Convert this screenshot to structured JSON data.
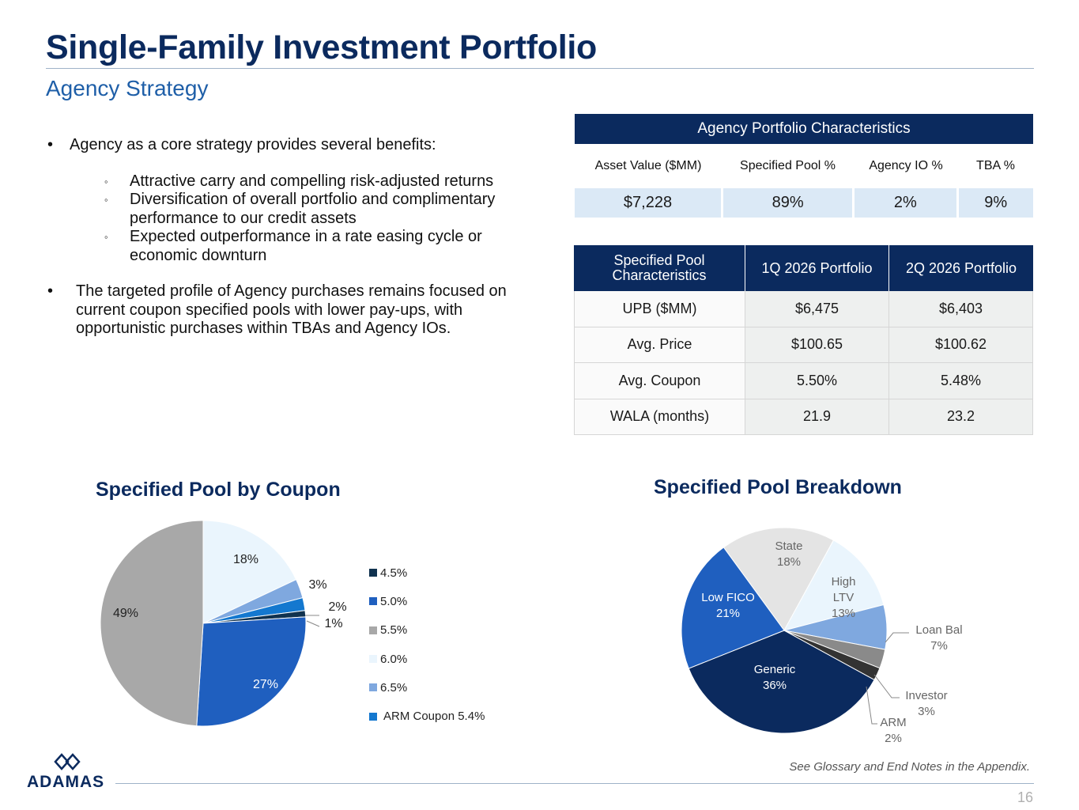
{
  "header": {
    "title": "Single-Family Investment Portfolio",
    "subtitle": "Agency Strategy"
  },
  "bullets": {
    "main1": "Agency as a core strategy provides several benefits:",
    "subs": [
      "Attractive carry and compelling risk-adjusted returns",
      "Diversification of overall portfolio and complimentary performance to our credit assets",
      "Expected outperformance in a rate easing cycle or economic downturn"
    ],
    "main2": "The targeted profile of Agency purchases remains focused on current coupon specified pools with lower pay-ups, with opportunistic purchases within TBAs and Agency IOs.",
    "dot_symbol": "•",
    "ring_symbol": "◦"
  },
  "table1": {
    "title": "Agency Portfolio Characteristics",
    "columns": [
      "Asset Value ($MM)",
      "Specified Pool %",
      "Agency IO %",
      "TBA %"
    ],
    "values": [
      "$7,228",
      "89%",
      "2%",
      "9%"
    ]
  },
  "table2": {
    "headers": [
      "Specified Pool Characteristics",
      "1Q 2026 Portfolio",
      "2Q 2026 Portfolio"
    ],
    "rows": [
      [
        "UPB ($MM)",
        "$6,475",
        "$6,403"
      ],
      [
        "Avg. Price",
        "$100.65",
        "$100.62"
      ],
      [
        "Avg. Coupon",
        "5.50%",
        "5.48%"
      ],
      [
        "WALA (months)",
        "21.9",
        "23.2"
      ]
    ]
  },
  "chart_data": [
    {
      "type": "pie",
      "title": "Specified Pool by Coupon",
      "labels": [
        "4.5%",
        "5.0%",
        "5.5%",
        "6.0%",
        "6.5%",
        "ARM Coupon 5.4%"
      ],
      "values": [
        1,
        27,
        49,
        18,
        3,
        2
      ],
      "data_labels": [
        "1%",
        "27%",
        "49%",
        "18%",
        "3%",
        "2%"
      ],
      "colors": [
        "#10324f",
        "#1f5fbf",
        "#a8a8a8",
        "#eaf5fd",
        "#7fa8df",
        "#1478cf"
      ],
      "legend": "right"
    },
    {
      "type": "pie",
      "title": "Specified Pool Breakdown",
      "labels": [
        "Generic",
        "Low FICO",
        "State",
        "High LTV",
        "Loan Bal",
        "Investor",
        "ARM"
      ],
      "values": [
        36,
        21,
        18,
        13,
        7,
        3,
        2
      ],
      "data_labels": [
        "Generic\n36%",
        "Low FICO\n21%",
        "State\n18%",
        "High\nLTV\n13%",
        "Loan Bal\n7%",
        "Investor\n3%",
        "ARM\n2%"
      ],
      "colors": [
        "#0b2a5e",
        "#1f5fbf",
        "#e4e4e4",
        "#eaf5fd",
        "#7fa8df",
        "#8a8a8a",
        "#333333"
      ],
      "legend": "none"
    }
  ],
  "footer": {
    "note": "See Glossary and End Notes in the Appendix.",
    "page": "16",
    "logo": "ADAMAS"
  }
}
